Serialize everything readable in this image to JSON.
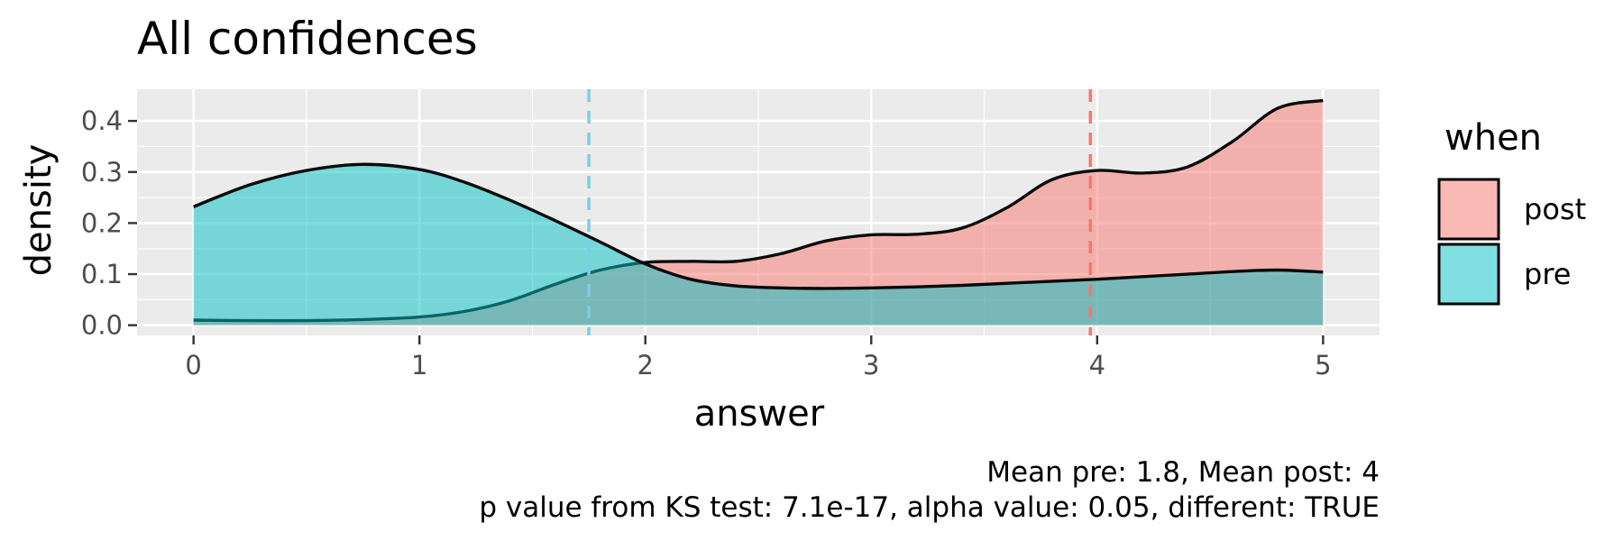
{
  "chart_data": {
    "type": "area",
    "title": "All confidences",
    "xlabel": "answer",
    "ylabel": "density",
    "xlim": [
      -0.25,
      5.25
    ],
    "ylim": [
      -0.02,
      0.462
    ],
    "x_ticks": [
      0,
      1,
      2,
      3,
      4,
      5
    ],
    "x_tick_labels": [
      "0",
      "1",
      "2",
      "3",
      "4",
      "5"
    ],
    "y_ticks": [
      0.0,
      0.1,
      0.2,
      0.3,
      0.4
    ],
    "y_tick_labels": [
      "0.0",
      "0.1",
      "0.2",
      "0.3",
      "0.4"
    ],
    "grid": true,
    "legend": {
      "title": "when",
      "position": "right",
      "entries": [
        "post",
        "pre"
      ]
    },
    "series": [
      {
        "name": "post",
        "color": "#F8766D",
        "fill": "#F4A8A3",
        "mean": 3.97,
        "x": [
          0,
          0.25,
          0.5,
          0.75,
          1.0,
          1.2,
          1.4,
          1.6,
          1.8,
          2.0,
          2.2,
          2.4,
          2.6,
          2.8,
          3.0,
          3.2,
          3.4,
          3.6,
          3.8,
          4.0,
          4.2,
          4.4,
          4.6,
          4.8,
          5.0
        ],
        "y": [
          0.01,
          0.009,
          0.009,
          0.011,
          0.016,
          0.027,
          0.048,
          0.08,
          0.108,
          0.123,
          0.125,
          0.125,
          0.14,
          0.165,
          0.177,
          0.178,
          0.19,
          0.23,
          0.285,
          0.303,
          0.298,
          0.31,
          0.36,
          0.425,
          0.44
        ]
      },
      {
        "name": "pre",
        "color": "#00BFC4",
        "fill": "#5FD3D6",
        "mean": 1.75,
        "x": [
          0,
          0.25,
          0.5,
          0.75,
          1.0,
          1.2,
          1.4,
          1.6,
          1.8,
          2.0,
          2.2,
          2.4,
          2.6,
          2.8,
          3.0,
          3.2,
          3.4,
          3.6,
          3.8,
          4.0,
          4.2,
          4.4,
          4.6,
          4.8,
          5.0
        ],
        "y": [
          0.232,
          0.275,
          0.303,
          0.315,
          0.305,
          0.28,
          0.245,
          0.205,
          0.163,
          0.12,
          0.09,
          0.077,
          0.073,
          0.072,
          0.073,
          0.075,
          0.078,
          0.082,
          0.086,
          0.09,
          0.095,
          0.1,
          0.105,
          0.108,
          0.104
        ]
      }
    ]
  },
  "caption": {
    "line1": "Mean pre: 1.8, Mean post: 4",
    "line2": "p value from KS test: 7.1e-17, alpha value: 0.05, different: TRUE"
  }
}
